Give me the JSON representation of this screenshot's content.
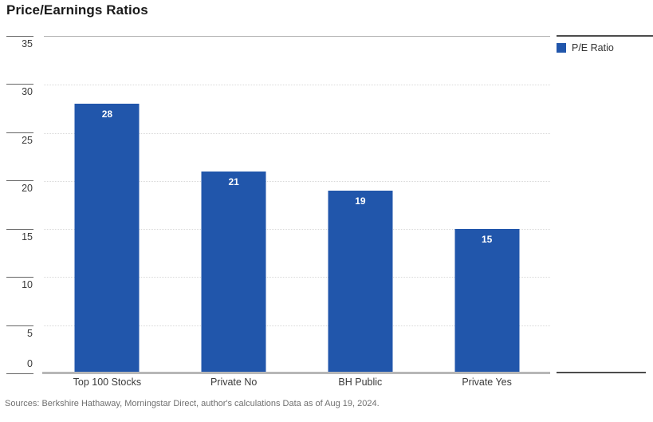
{
  "title": "Price/Earnings Ratios",
  "source_note": "Sources: Berkshire Hathaway, Morningstar Direct, author's calculations Data as of Aug 19, 2024.",
  "legend": {
    "label": "P/E Ratio"
  },
  "colors": {
    "bar": "#2156ab",
    "grid_dotted": "#d9d9d9",
    "baseline": "#b7b7b7",
    "legend_rule": "#4c4c4c",
    "bar_value_text": "#ffffff"
  },
  "chart_data": {
    "type": "bar",
    "title": "Price/Earnings Ratios",
    "categories": [
      "Top 100 Stocks",
      "Private No",
      "BH Public",
      "Private Yes"
    ],
    "series": [
      {
        "name": "P/E Ratio",
        "color": "#2156ab",
        "values": [
          28,
          21,
          19,
          15
        ]
      }
    ],
    "xlabel": "",
    "ylabel": "",
    "ylim": [
      0,
      35
    ],
    "yticks": [
      0,
      5,
      10,
      15,
      20,
      25,
      30,
      35
    ],
    "grid": "horizontal-dotted",
    "legend_position": "top-right",
    "value_label_position": "inside-top"
  }
}
